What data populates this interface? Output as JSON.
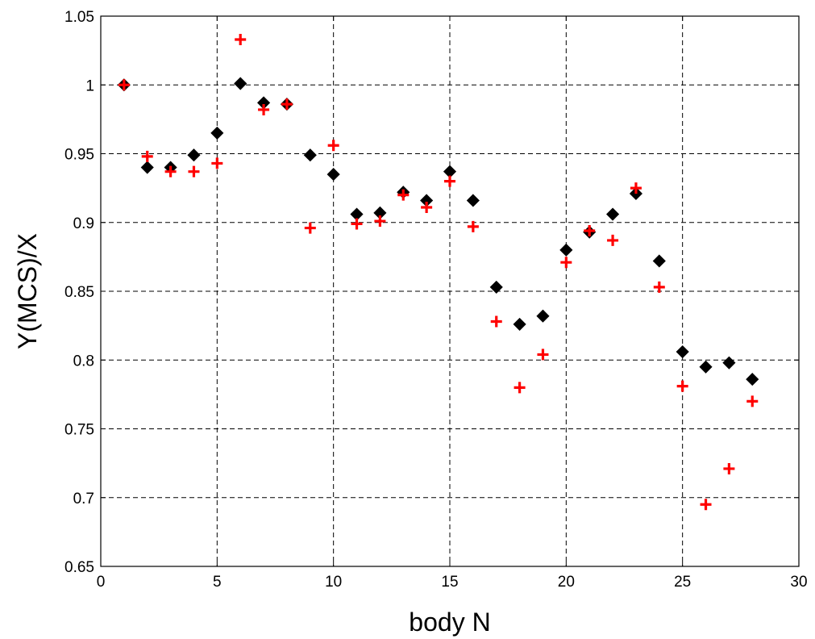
{
  "chart_data": {
    "type": "scatter",
    "xlabel": "body N",
    "ylabel": "Y(MCS)/X",
    "xlim": [
      0,
      30
    ],
    "ylim": [
      0.65,
      1.05
    ],
    "xticks": [
      0,
      5,
      10,
      15,
      20,
      25,
      30
    ],
    "xtick_labels": [
      "0",
      "5",
      "10",
      "15",
      "20",
      "25",
      "30"
    ],
    "yticks": [
      0.65,
      0.7,
      0.75,
      0.8,
      0.85,
      0.9,
      0.95,
      1.0,
      1.05
    ],
    "ytick_labels": [
      "0.65",
      "0.7",
      "0.75",
      "0.8",
      "0.85",
      "0.9",
      "0.95",
      "1",
      "1.05"
    ],
    "grid": true,
    "legend": "none",
    "series": [
      {
        "marker": "diamond",
        "color": "#000000",
        "x": [
          1,
          2,
          3,
          4,
          5,
          6,
          7,
          8,
          9,
          10,
          11,
          12,
          13,
          14,
          15,
          16,
          17,
          18,
          19,
          20,
          21,
          22,
          23,
          24,
          25,
          26,
          27,
          28
        ],
        "y": [
          1.0,
          0.94,
          0.94,
          0.949,
          0.965,
          1.001,
          0.987,
          0.986,
          0.949,
          0.935,
          0.906,
          0.907,
          0.922,
          0.916,
          0.937,
          0.916,
          0.853,
          0.826,
          0.832,
          0.88,
          0.893,
          0.906,
          0.921,
          0.872,
          0.806,
          0.795,
          0.798,
          0.786
        ]
      },
      {
        "marker": "plus",
        "color": "#ff0000",
        "x": [
          1,
          2,
          3,
          4,
          5,
          6,
          7,
          8,
          9,
          10,
          11,
          12,
          13,
          14,
          15,
          16,
          17,
          18,
          19,
          20,
          21,
          22,
          23,
          24,
          25,
          26,
          27,
          28
        ],
        "y": [
          1.0,
          0.948,
          0.937,
          0.937,
          0.943,
          1.033,
          0.982,
          0.986,
          0.896,
          0.956,
          0.899,
          0.901,
          0.92,
          0.911,
          0.93,
          0.897,
          0.828,
          0.78,
          0.804,
          0.871,
          0.894,
          0.887,
          0.925,
          0.853,
          0.781,
          0.695,
          0.721,
          0.77
        ]
      }
    ]
  }
}
